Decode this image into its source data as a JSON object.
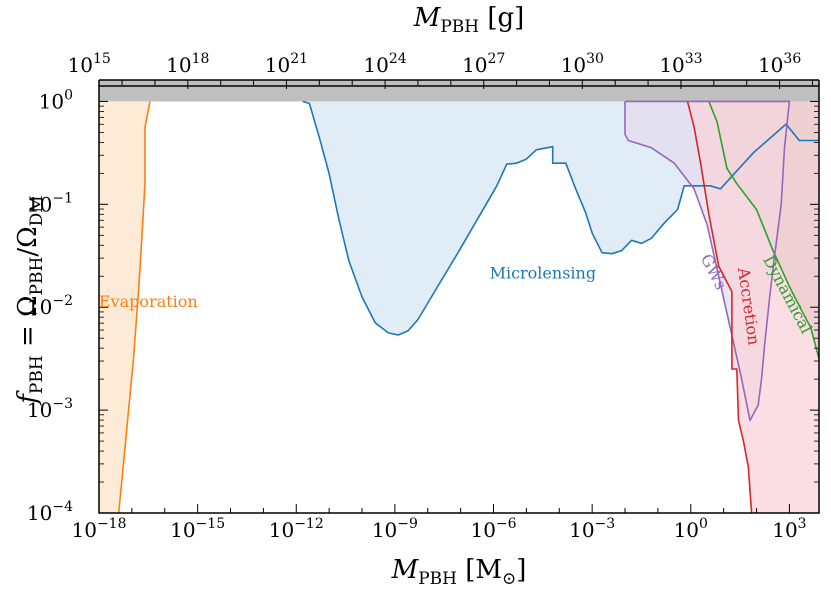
{
  "chart_data": {
    "type": "area",
    "xlabel": "M_PBH [M_⊙]",
    "xlabel_parts": {
      "main": "M",
      "sub": "PBH",
      "unit_open": "[M",
      "unit_sub": "⊙",
      "unit_close": "]"
    },
    "x2label": "M_PBH [g]",
    "x2label_parts": {
      "main": "M",
      "sub": "PBH",
      "unit": "[g]"
    },
    "ylabel": "f_PBH = Ω_PBH/Ω_DM",
    "ylabel_parts": {
      "f": "f",
      "f_sub": "PBH",
      "eq": "=",
      "omega": "Ω",
      "omega_sub1": "PBH",
      "slash": "/",
      "omega_sub2": "DM"
    },
    "x_scale": "log",
    "y_scale": "log",
    "xlim_log10": [
      -18,
      3.9
    ],
    "ylim_log10": [
      -4,
      0.15
    ],
    "x_ticks": [
      {
        "exp": -18,
        "base": "10",
        "label": "−18"
      },
      {
        "exp": -15,
        "base": "10",
        "label": "−15"
      },
      {
        "exp": -12,
        "base": "10",
        "label": "−12"
      },
      {
        "exp": -9,
        "base": "10",
        "label": "−9"
      },
      {
        "exp": -6,
        "base": "10",
        "label": "−6"
      },
      {
        "exp": -3,
        "base": "10",
        "label": "−3"
      },
      {
        "exp": 0,
        "base": "10",
        "label": "0"
      },
      {
        "exp": 3,
        "base": "10",
        "label": "3"
      }
    ],
    "x2_ticks": [
      {
        "exp_g": 15,
        "base": "10",
        "label": "15"
      },
      {
        "exp_g": 18,
        "base": "10",
        "label": "18"
      },
      {
        "exp_g": 21,
        "base": "10",
        "label": "21"
      },
      {
        "exp_g": 24,
        "base": "10",
        "label": "24"
      },
      {
        "exp_g": 27,
        "base": "10",
        "label": "27"
      },
      {
        "exp_g": 30,
        "base": "10",
        "label": "30"
      },
      {
        "exp_g": 33,
        "base": "10",
        "label": "33"
      },
      {
        "exp_g": 36,
        "base": "10",
        "label": "36"
      }
    ],
    "y_ticks": [
      {
        "exp": -4,
        "base": "10",
        "label": "−4"
      },
      {
        "exp": -3,
        "base": "10",
        "label": "−3"
      },
      {
        "exp": -2,
        "base": "10",
        "label": "−2"
      },
      {
        "exp": -1,
        "base": "10",
        "label": "−1"
      },
      {
        "exp": 0,
        "base": "10",
        "label": "0"
      }
    ],
    "grid": false,
    "excluded_band": {
      "y_min_log10": 0,
      "color": "#bfbfbf"
    },
    "series": [
      {
        "name": "Evaporation",
        "label": "Evaporation",
        "color": "#ff7f0e",
        "fill": "#fde6d0",
        "fill_side": "left",
        "label_at": {
          "x_log10": -16.5,
          "y_log10": -2.0,
          "rotate": 0
        },
        "points_log10": [
          [
            -17.4,
            -4.0
          ],
          [
            -17.25,
            -3.5
          ],
          [
            -17.1,
            -3.0
          ],
          [
            -16.95,
            -2.5
          ],
          [
            -16.8,
            -1.85
          ],
          [
            -16.7,
            -1.35
          ],
          [
            -16.6,
            -0.8
          ],
          [
            -16.6,
            -0.25
          ],
          [
            -16.45,
            0.0
          ]
        ]
      },
      {
        "name": "Microlensing",
        "label": "Microlensing",
        "color": "#1f77b4",
        "fill": "#dceaf5",
        "fill_side": "top",
        "label_at": {
          "x_log10": -4.5,
          "y_log10": -1.72,
          "rotate": 0
        },
        "points_log10": [
          [
            -11.8,
            0.0
          ],
          [
            -11.6,
            -0.02
          ],
          [
            -11.3,
            -0.35
          ],
          [
            -11.0,
            -0.7
          ],
          [
            -10.7,
            -1.15
          ],
          [
            -10.4,
            -1.55
          ],
          [
            -10.0,
            -1.9
          ],
          [
            -9.6,
            -2.15
          ],
          [
            -9.2,
            -2.25
          ],
          [
            -8.9,
            -2.27
          ],
          [
            -8.6,
            -2.23
          ],
          [
            -8.3,
            -2.12
          ],
          [
            -7.7,
            -1.8
          ],
          [
            -7.1,
            -1.48
          ],
          [
            -6.5,
            -1.15
          ],
          [
            -5.9,
            -0.82
          ],
          [
            -5.6,
            -0.61
          ],
          [
            -5.3,
            -0.6
          ],
          [
            -5.0,
            -0.56
          ],
          [
            -4.7,
            -0.47
          ],
          [
            -4.2,
            -0.44
          ],
          [
            -4.2,
            -0.6
          ],
          [
            -3.8,
            -0.6
          ],
          [
            -3.5,
            -0.85
          ],
          [
            -3.2,
            -1.08
          ],
          [
            -3.0,
            -1.28
          ],
          [
            -2.7,
            -1.47
          ],
          [
            -2.4,
            -1.48
          ],
          [
            -2.1,
            -1.45
          ],
          [
            -1.8,
            -1.35
          ],
          [
            -1.5,
            -1.38
          ],
          [
            -1.2,
            -1.33
          ],
          [
            -0.8,
            -1.18
          ],
          [
            -0.4,
            -1.05
          ],
          [
            -0.2,
            -0.82
          ],
          [
            0.6,
            -0.82
          ],
          [
            0.9,
            -0.85
          ],
          [
            1.9,
            -0.5
          ],
          [
            2.9,
            -0.22
          ],
          [
            3.3,
            -0.38
          ],
          [
            3.9,
            -0.38
          ]
        ]
      },
      {
        "name": "GWs",
        "label": "GWs",
        "color": "#9467bd",
        "fill": "#e4dcf0",
        "fill_side": "closed",
        "label_at": {
          "x_log10": 0.55,
          "y_log10": -1.68,
          "rotate": 63
        },
        "points_log10": [
          [
            -2.0,
            0.0
          ],
          [
            3.0,
            0.0
          ],
          [
            2.85,
            -0.45
          ],
          [
            2.75,
            -1.0
          ],
          [
            2.55,
            -1.5
          ],
          [
            2.4,
            -1.9
          ],
          [
            2.25,
            -2.35
          ],
          [
            2.15,
            -2.7
          ],
          [
            2.05,
            -2.95
          ],
          [
            1.8,
            -3.1
          ],
          [
            1.55,
            -2.7
          ],
          [
            1.2,
            -2.2
          ],
          [
            0.85,
            -1.7
          ],
          [
            0.5,
            -1.2
          ],
          [
            0.1,
            -0.85
          ],
          [
            -0.5,
            -0.6
          ],
          [
            -1.2,
            -0.45
          ],
          [
            -1.9,
            -0.38
          ],
          [
            -2.0,
            -0.32
          ],
          [
            -2.0,
            0.0
          ]
        ]
      },
      {
        "name": "Accretion",
        "label": "Accretion",
        "color": "#d62728",
        "fill": "#f8d3da",
        "fill_side": "right",
        "label_at": {
          "x_log10": 1.6,
          "y_log10": -2.0,
          "rotate": 82
        },
        "points_log10": [
          [
            -0.1,
            0.0
          ],
          [
            0.1,
            -0.25
          ],
          [
            0.3,
            -0.6
          ],
          [
            0.55,
            -1.1
          ],
          [
            0.85,
            -1.6
          ],
          [
            1.25,
            -1.85
          ],
          [
            1.25,
            -2.6
          ],
          [
            1.4,
            -2.6
          ],
          [
            1.45,
            -3.1
          ],
          [
            1.6,
            -3.3
          ],
          [
            1.75,
            -3.55
          ],
          [
            1.85,
            -4.0
          ]
        ]
      },
      {
        "name": "Dynamical",
        "label": "Dynamical",
        "color": "#2ca02c",
        "fill": "#cdbfb3",
        "fill_side": "right",
        "label_at": {
          "x_log10": 2.8,
          "y_log10": -1.9,
          "rotate": 62
        },
        "points_log10": [
          [
            0.55,
            0.0
          ],
          [
            0.8,
            -0.2
          ],
          [
            1.1,
            -0.65
          ],
          [
            1.4,
            -0.8
          ],
          [
            2.0,
            -1.05
          ],
          [
            2.5,
            -1.45
          ],
          [
            3.0,
            -1.8
          ],
          [
            3.4,
            -2.05
          ],
          [
            3.65,
            -2.2
          ],
          [
            3.9,
            -2.5
          ]
        ]
      }
    ]
  }
}
